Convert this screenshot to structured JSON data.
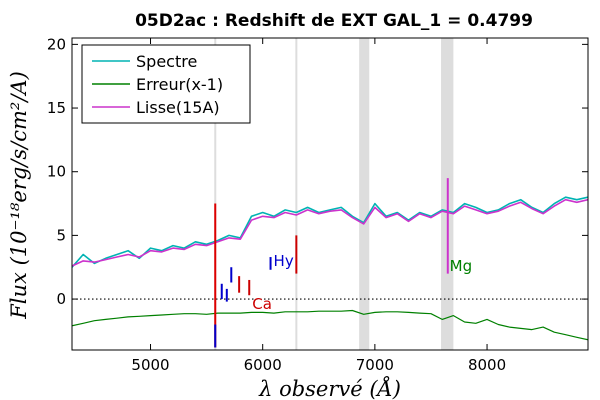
{
  "chart_data": {
    "type": "line",
    "title": "05D2ac : Redshift de EXT GAL_1 = 0.4799",
    "xlabel": "λ observé (Å)",
    "ylabel": "Flux (10⁻¹⁸erg/s/cm²/A)",
    "xlim": [
      4300,
      8900
    ],
    "ylim": [
      -4,
      20.5
    ],
    "xticks": [
      5000,
      6000,
      7000,
      8000
    ],
    "xtick_labels": [
      "5000",
      "6000",
      "7000",
      "8000"
    ],
    "yticks": [
      0,
      5,
      10,
      15,
      20
    ],
    "ytick_labels": [
      "0",
      "5",
      "10",
      "15",
      "20"
    ],
    "legend_position": "top-left",
    "grid": false,
    "zero_line": {
      "y": 0,
      "style": "dotted",
      "color": "#000000"
    },
    "shaded_regions": [
      {
        "x0": 6860,
        "x1": 6950,
        "color": "#dddddd"
      },
      {
        "x0": 7590,
        "x1": 7700,
        "color": "#dddddd"
      }
    ],
    "vertical_lines": [
      {
        "x": 5577,
        "color": "#dddddd"
      },
      {
        "x": 6300,
        "color": "#dddddd"
      }
    ],
    "series": [
      {
        "name": "Spectre",
        "color": "#00b3b3",
        "x": [
          4300,
          4400,
          4500,
          4600,
          4700,
          4800,
          4900,
          5000,
          5100,
          5200,
          5300,
          5400,
          5500,
          5600,
          5700,
          5800,
          5900,
          6000,
          6100,
          6200,
          6300,
          6400,
          6500,
          6600,
          6700,
          6800,
          6900,
          7000,
          7100,
          7200,
          7300,
          7400,
          7500,
          7600,
          7700,
          7800,
          7900,
          8000,
          8100,
          8200,
          8300,
          8400,
          8500,
          8600,
          8700,
          8800,
          8900
        ],
        "values": [
          2.5,
          3.5,
          2.8,
          3.2,
          3.5,
          3.8,
          3.2,
          4.0,
          3.8,
          4.2,
          4.0,
          4.5,
          4.3,
          4.6,
          5.0,
          4.8,
          6.5,
          6.8,
          6.5,
          7.0,
          6.8,
          7.2,
          6.8,
          7.0,
          7.2,
          6.5,
          6.0,
          7.5,
          6.5,
          6.8,
          6.2,
          6.8,
          6.5,
          7.0,
          6.8,
          7.5,
          7.2,
          6.8,
          7.0,
          7.5,
          7.8,
          7.2,
          6.8,
          7.5,
          8.0,
          7.8,
          8.0
        ]
      },
      {
        "name": "Erreur(x-1)",
        "color": "#008000",
        "x": [
          4300,
          4400,
          4500,
          4600,
          4700,
          4800,
          4900,
          5000,
          5100,
          5200,
          5300,
          5400,
          5500,
          5600,
          5700,
          5800,
          5900,
          6000,
          6100,
          6200,
          6300,
          6400,
          6500,
          6600,
          6700,
          6800,
          6900,
          7000,
          7100,
          7200,
          7300,
          7400,
          7500,
          7600,
          7700,
          7800,
          7900,
          8000,
          8100,
          8200,
          8300,
          8400,
          8500,
          8600,
          8700,
          8800,
          8900
        ],
        "values": [
          -2.1,
          -1.9,
          -1.7,
          -1.6,
          -1.5,
          -1.4,
          -1.35,
          -1.3,
          -1.25,
          -1.2,
          -1.15,
          -1.15,
          -1.2,
          -1.1,
          -1.1,
          -1.1,
          -1.05,
          -1.05,
          -1.1,
          -1.0,
          -1.0,
          -1.0,
          -0.95,
          -0.95,
          -0.95,
          -0.9,
          -1.2,
          -1.05,
          -1.0,
          -1.0,
          -1.05,
          -1.1,
          -1.15,
          -1.6,
          -1.3,
          -1.8,
          -1.9,
          -1.6,
          -2.0,
          -2.2,
          -2.3,
          -2.4,
          -2.2,
          -2.6,
          -2.8,
          -3.0,
          -3.2
        ]
      },
      {
        "name": "Lisse(15A)",
        "color": "#cc33cc",
        "x": [
          4300,
          4400,
          4500,
          4600,
          4700,
          4800,
          4900,
          5000,
          5100,
          5200,
          5300,
          5400,
          5500,
          5600,
          5700,
          5800,
          5900,
          6000,
          6100,
          6200,
          6300,
          6400,
          6500,
          6600,
          6700,
          6800,
          6900,
          7000,
          7100,
          7200,
          7300,
          7400,
          7500,
          7600,
          7700,
          7800,
          7900,
          8000,
          8100,
          8200,
          8300,
          8400,
          8500,
          8600,
          8700,
          8800,
          8900
        ],
        "values": [
          2.6,
          3.0,
          2.9,
          3.1,
          3.3,
          3.5,
          3.3,
          3.8,
          3.7,
          4.0,
          3.9,
          4.3,
          4.2,
          4.5,
          4.8,
          4.7,
          6.2,
          6.5,
          6.4,
          6.8,
          6.6,
          7.0,
          6.7,
          6.9,
          7.0,
          6.4,
          5.9,
          7.2,
          6.4,
          6.7,
          6.1,
          6.7,
          6.4,
          6.9,
          6.7,
          7.3,
          7.0,
          6.7,
          6.9,
          7.3,
          7.6,
          7.1,
          6.7,
          7.3,
          7.8,
          7.6,
          7.8
        ]
      }
    ],
    "line_markers": [
      {
        "label": "Hy",
        "x": 6070,
        "label_x": 6070,
        "label_y": 3.0,
        "color": "#0000cc",
        "tick_y0": 2.3,
        "tick_y1": 3.3
      },
      {
        "label": "Ca",
        "x": 5880,
        "label_x": 5880,
        "label_y": -0.4,
        "color": "#cc0000",
        "tick_y0": 0.3,
        "tick_y1": 1.5
      },
      {
        "label": "Mg",
        "x": 7640,
        "label_x": 7640,
        "label_y": 2.6,
        "color": "#008000",
        "tick_y0": 0,
        "tick_y1": 0
      }
    ],
    "extra_ticks": [
      {
        "x": 5577,
        "y0": -3.8,
        "y1": 7.5,
        "color": "#dd0000"
      },
      {
        "x": 5577,
        "y0": -3.8,
        "y1": -2.0,
        "color": "#0000cc"
      },
      {
        "x": 5635,
        "y0": 0.0,
        "y1": 1.2,
        "color": "#0000cc"
      },
      {
        "x": 5680,
        "y0": -0.2,
        "y1": 0.8,
        "color": "#0000cc"
      },
      {
        "x": 5720,
        "y0": 1.3,
        "y1": 2.5,
        "color": "#0000cc"
      },
      {
        "x": 5790,
        "y0": 0.5,
        "y1": 1.8,
        "color": "#cc0000"
      },
      {
        "x": 6300,
        "y0": 2.0,
        "y1": 5.0,
        "color": "#cc0000"
      },
      {
        "x": 7650,
        "y0": 2.0,
        "y1": 9.5,
        "color": "#cc33cc"
      }
    ]
  }
}
